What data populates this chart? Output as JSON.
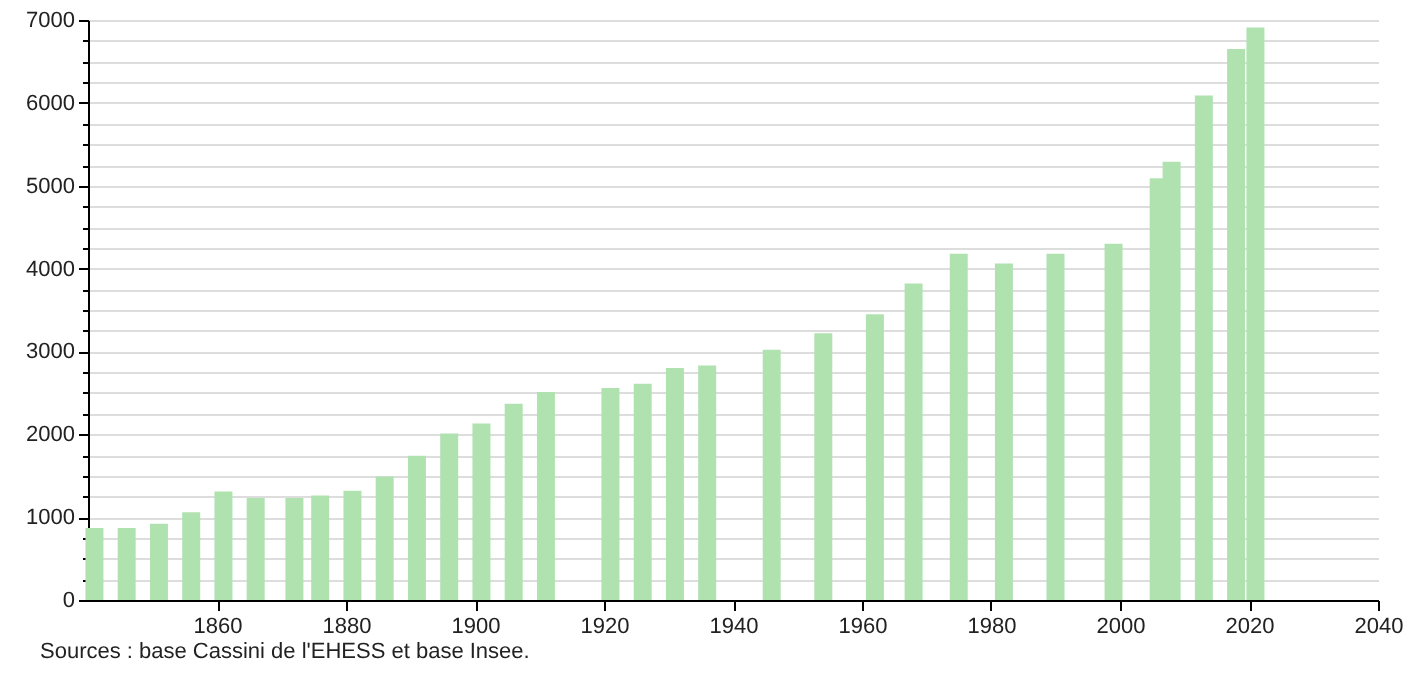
{
  "chart_data": {
    "type": "bar",
    "color": "#b0e2b0",
    "x": [
      1841,
      1846,
      1851,
      1856,
      1861,
      1866,
      1872,
      1876,
      1881,
      1886,
      1891,
      1896,
      1901,
      1906,
      1911,
      1921,
      1926,
      1931,
      1936,
      1946,
      1954,
      1962,
      1968,
      1975,
      1982,
      1990,
      1999,
      2006,
      2008,
      2013,
      2018,
      2021
    ],
    "values": [
      870,
      870,
      920,
      1060,
      1310,
      1230,
      1230,
      1260,
      1320,
      1490,
      1740,
      2010,
      2130,
      2370,
      2510,
      2560,
      2610,
      2800,
      2830,
      3020,
      3220,
      3450,
      3820,
      4180,
      4060,
      4180,
      4300,
      5090,
      5290,
      6090,
      6650,
      6910
    ],
    "xlim": [
      1840,
      2040
    ],
    "xticks": [
      1860,
      1880,
      1900,
      1920,
      1940,
      1960,
      1980,
      2000,
      2020,
      2040
    ],
    "ylim": [
      0,
      7000
    ],
    "yticks": [
      0,
      {
        "value": 250,
        "label": null
      },
      {
        "value": 500,
        "label": null
      },
      {
        "value": 750,
        "label": null
      },
      1000,
      {
        "value": 1250,
        "label": null
      },
      {
        "value": 1500,
        "label": null
      },
      {
        "value": 1750,
        "label": null
      },
      2000,
      {
        "value": 2250,
        "label": null
      },
      {
        "value": 2500,
        "label": null
      },
      {
        "value": 2750,
        "label": null
      },
      3000,
      {
        "value": 3250,
        "label": null
      },
      {
        "value": 3500,
        "label": null
      },
      {
        "value": 3750,
        "label": null
      },
      4000,
      {
        "value": 4250,
        "label": null
      },
      {
        "value": 4500,
        "label": null
      },
      {
        "value": 4750,
        "label": null
      },
      5000,
      {
        "value": 5250,
        "label": null
      },
      {
        "value": 5500,
        "label": null
      },
      {
        "value": 5750,
        "label": null
      },
      6000,
      {
        "value": 6250,
        "label": null
      },
      {
        "value": 6500,
        "label": null
      },
      {
        "value": 6750,
        "label": null
      },
      7000
    ],
    "grid": "y",
    "annotations": [
      "Sources : base Cassini de l'EHESS et base Insee."
    ]
  }
}
